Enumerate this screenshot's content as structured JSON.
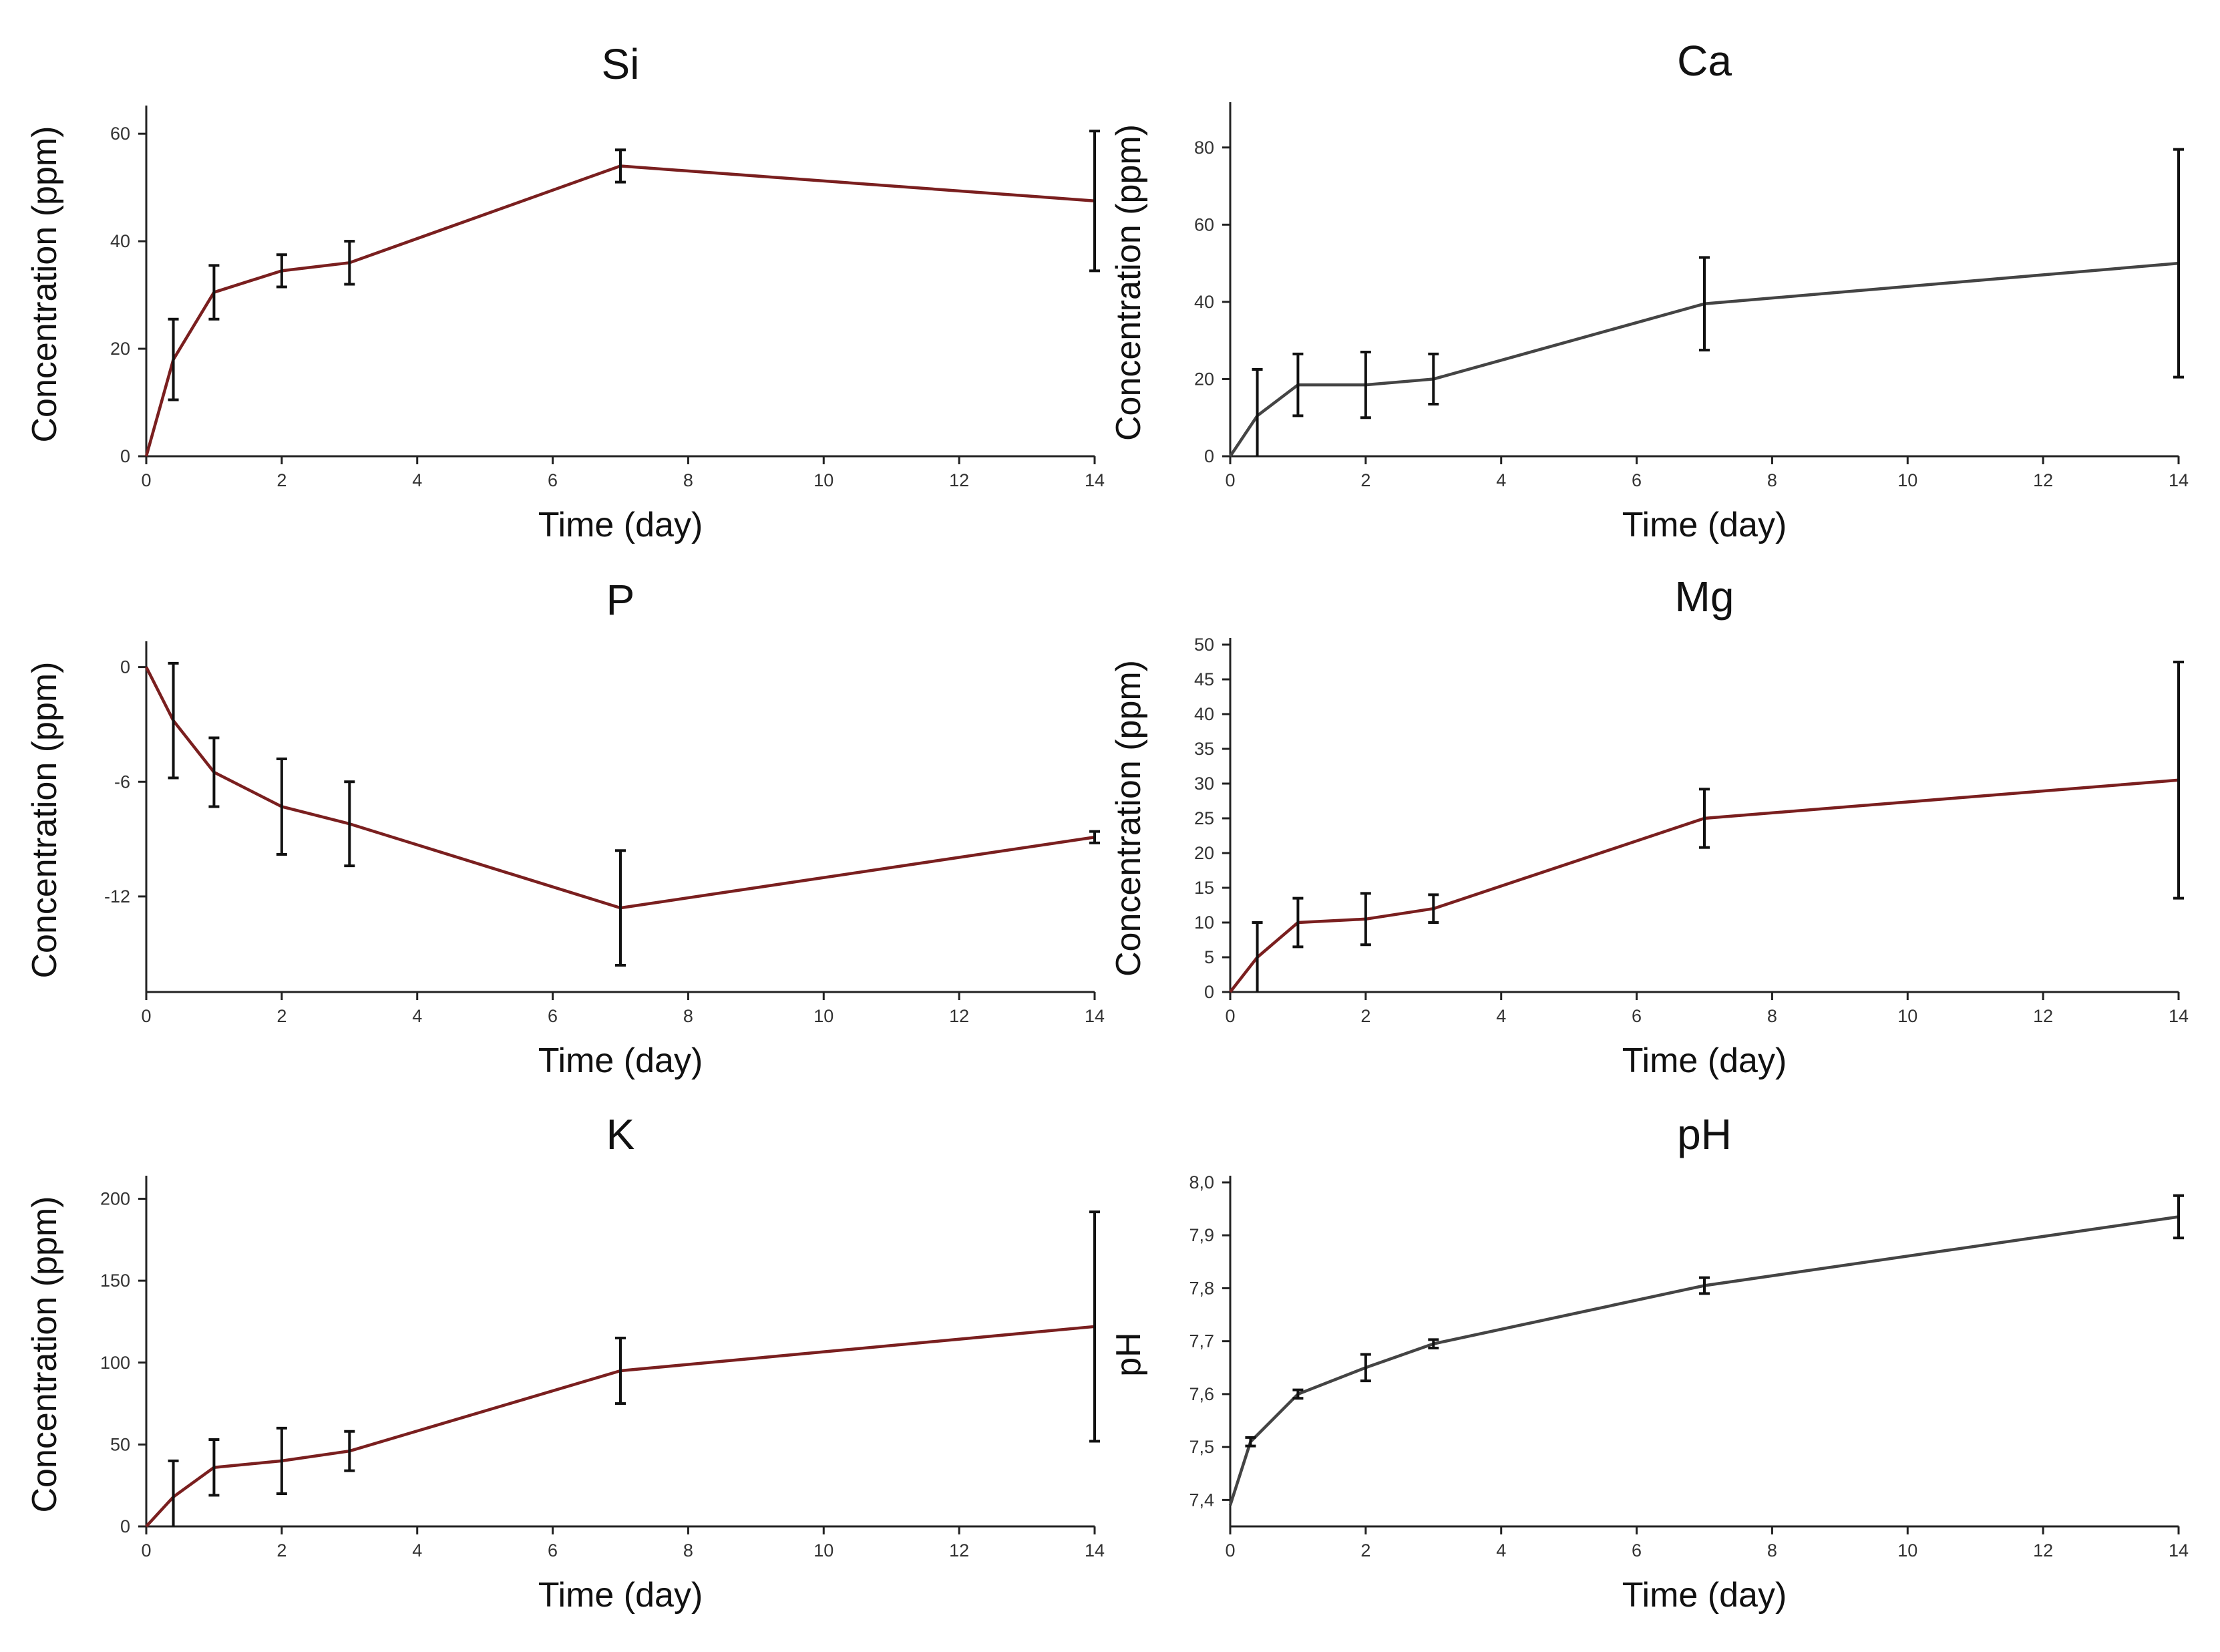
{
  "chart_data": [
    {
      "type": "line",
      "title": "Si",
      "xlabel": "Time (day)",
      "ylabel": "Concentration (ppm)",
      "xlim": [
        0,
        14
      ],
      "ylim": [
        0,
        64
      ],
      "xticks": [
        0,
        2,
        4,
        6,
        8,
        10,
        12,
        14
      ],
      "yticks": [
        0,
        20,
        40,
        60
      ],
      "color": "#7a1f1f",
      "series": [
        {
          "name": "Si",
          "x": [
            0,
            0.4,
            1,
            2,
            3,
            7,
            14
          ],
          "y": [
            0,
            18,
            30.5,
            34.5,
            36,
            54,
            47.5
          ],
          "err": [
            0,
            7.5,
            5,
            3,
            4,
            3,
            13
          ]
        }
      ]
    },
    {
      "type": "line",
      "title": "Ca",
      "xlabel": "Time (day)",
      "ylabel": "Concentration (ppm)",
      "xlim": [
        0,
        14
      ],
      "ylim": [
        0,
        90
      ],
      "xticks": [
        0,
        2,
        4,
        6,
        8,
        10,
        12,
        14
      ],
      "yticks": [
        0,
        20,
        40,
        60,
        80
      ],
      "color": "#444444",
      "series": [
        {
          "name": "Ca",
          "x": [
            0,
            0.4,
            1,
            2,
            3,
            7,
            14
          ],
          "y": [
            0,
            10.5,
            18.5,
            18.5,
            20,
            39.5,
            50
          ],
          "err": [
            0,
            12,
            8,
            8.5,
            6.5,
            12,
            29.5
          ]
        }
      ]
    },
    {
      "type": "line",
      "title": "P",
      "xlabel": "Time (day)",
      "ylabel": "Concentration (ppm)",
      "xlim": [
        0,
        14
      ],
      "ylim": [
        -17,
        1
      ],
      "xticks": [
        0,
        2,
        4,
        6,
        8,
        10,
        12,
        14
      ],
      "yticks": [
        -12,
        -6,
        0
      ],
      "color": "#7a1f1f",
      "series": [
        {
          "name": "P",
          "x": [
            0,
            0.4,
            1,
            2,
            3,
            7,
            14
          ],
          "y": [
            0,
            -2.8,
            -5.5,
            -7.3,
            -8.2,
            -12.6,
            -8.9
          ],
          "err": [
            0,
            3,
            1.8,
            2.5,
            2.2,
            3,
            0.3
          ]
        }
      ]
    },
    {
      "type": "line",
      "title": "Mg",
      "xlabel": "Time (day)",
      "ylabel": "Concentration (ppm)",
      "xlim": [
        0,
        14
      ],
      "ylim": [
        0,
        50
      ],
      "xticks": [
        0,
        2,
        4,
        6,
        8,
        10,
        12,
        14
      ],
      "yticks": [
        0,
        5,
        10,
        15,
        20,
        25,
        30,
        35,
        40,
        45,
        50
      ],
      "color": "#7a1f1f",
      "series": [
        {
          "name": "Mg",
          "x": [
            0,
            0.4,
            1,
            2,
            3,
            7,
            14
          ],
          "y": [
            0,
            5,
            10,
            10.5,
            12,
            25,
            30.5
          ],
          "err": [
            0,
            5,
            3.5,
            3.7,
            2,
            4.2,
            17
          ]
        }
      ]
    },
    {
      "type": "line",
      "title": "K",
      "xlabel": "Time (day)",
      "ylabel": "Concentration (ppm)",
      "xlim": [
        0,
        14
      ],
      "ylim": [
        0,
        210
      ],
      "xticks": [
        0,
        2,
        4,
        6,
        8,
        10,
        12,
        14
      ],
      "yticks": [
        0,
        50,
        100,
        150,
        200
      ],
      "color": "#7a1f1f",
      "series": [
        {
          "name": "K",
          "x": [
            0,
            0.4,
            1,
            2,
            3,
            7,
            14
          ],
          "y": [
            0,
            18,
            36,
            40,
            46,
            95,
            122
          ],
          "err": [
            0,
            22,
            17,
            20,
            12,
            20,
            70
          ]
        }
      ]
    },
    {
      "type": "line",
      "title": "pH",
      "xlabel": "Time (day)",
      "ylabel": "pH",
      "xlim": [
        0,
        14
      ],
      "ylim": [
        7.35,
        8.0
      ],
      "xticks": [
        0,
        2,
        4,
        6,
        8,
        10,
        12,
        14
      ],
      "yticks": [
        7.4,
        7.5,
        7.6,
        7.7,
        7.8,
        7.9,
        8.0
      ],
      "ytick_labels": [
        "7,4",
        "7,5",
        "7,6",
        "7,7",
        "7,8",
        "7,9",
        "8,0"
      ],
      "color": "#444444",
      "series": [
        {
          "name": "pH",
          "x": [
            0,
            0.3,
            1,
            2,
            3,
            7,
            14
          ],
          "y": [
            7.39,
            7.51,
            7.6,
            7.65,
            7.695,
            7.805,
            7.935
          ],
          "err": [
            0,
            0.008,
            0.008,
            0.025,
            0.008,
            0.015,
            0.04
          ]
        }
      ]
    }
  ]
}
